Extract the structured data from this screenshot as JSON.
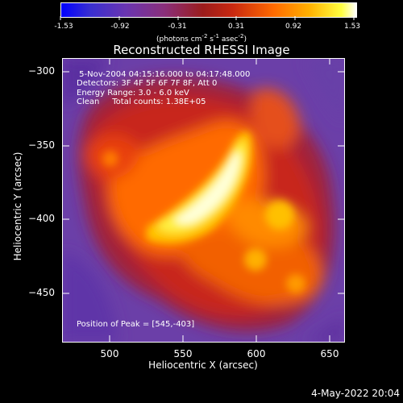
{
  "colorbar": {
    "ticks": [
      "-1.53",
      "-0.92",
      "-0.31",
      "0.31",
      "0.92",
      "1.53"
    ],
    "units_text": "(photons cm",
    "units_exp1": "-2",
    "units_mid": " s",
    "units_exp2": "-1",
    "units_end": " asec",
    "units_exp3": "-2",
    "units_close": ")"
  },
  "plot": {
    "title": "Reconstructed RHESSI Image",
    "info_lines": [
      " 5-Nov-2004 04:15:16.000 to 04:17:48.000",
      "Detectors: 3F 4F 5F 6F 7F 8F, Att 0",
      "Energy Range: 3.0 - 6.0 keV",
      "Clean     Total counts: 1.38E+05"
    ],
    "peak_text": "Position of Peak = [545,-403]",
    "xlabel": "Heliocentric X (arcsec)",
    "ylabel": "Heliocentric Y (arcsec)",
    "xticks": [
      "500",
      "550",
      "600",
      "650"
    ],
    "yticks": [
      "−300",
      "−350",
      "−400",
      "−450"
    ],
    "date_stamp": "4-May-2022 20:04"
  },
  "colors": {
    "background": "#000000",
    "low": "#6e3cb4",
    "mid": "#b41e14",
    "high": "#ffffe6"
  }
}
